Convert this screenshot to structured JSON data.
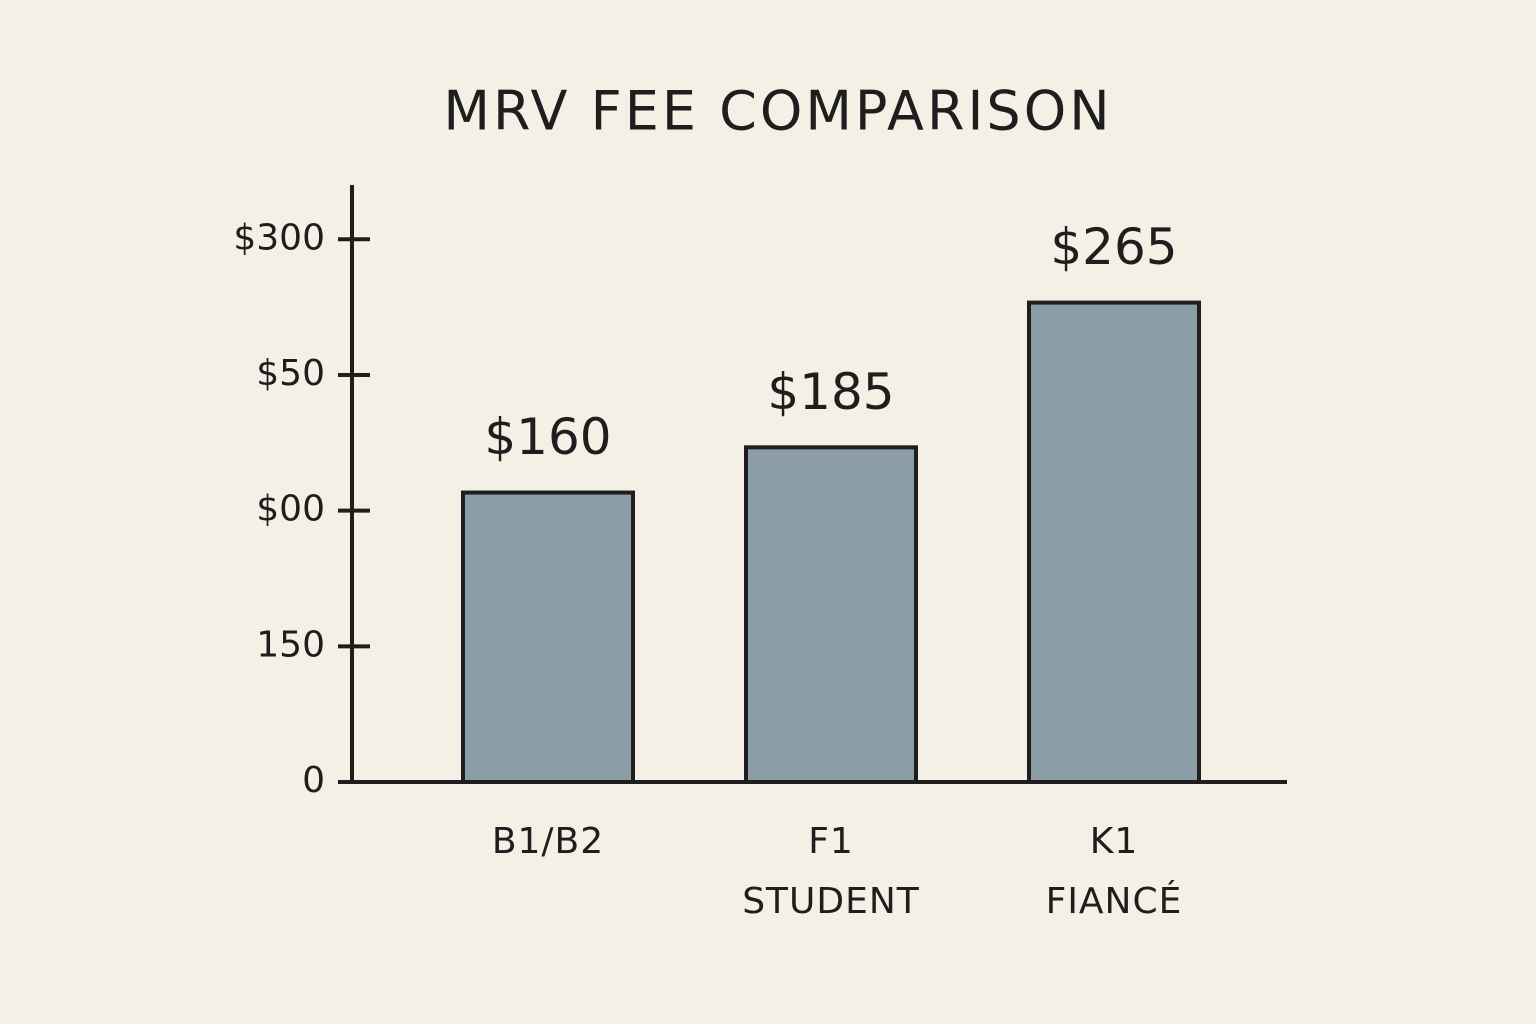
{
  "chart_data": {
    "type": "bar",
    "title": "MRV FEE COMPARISON",
    "categories": [
      [
        "B1/B2"
      ],
      [
        "F1",
        "STUDENT"
      ],
      [
        "K1",
        "FIANCÉ"
      ]
    ],
    "values": [
      160,
      185,
      265
    ],
    "value_labels": [
      "$160",
      "$185",
      "$265"
    ],
    "color": "#8b9da6",
    "ylim": [
      0,
      330
    ],
    "yticks": [
      0,
      {
        "value": 75,
        "label": "150"
      },
      {
        "value": 150,
        "label": "$00"
      },
      {
        "value": 225,
        "label": "$50"
      },
      {
        "value": 300,
        "label": "$300"
      }
    ]
  }
}
